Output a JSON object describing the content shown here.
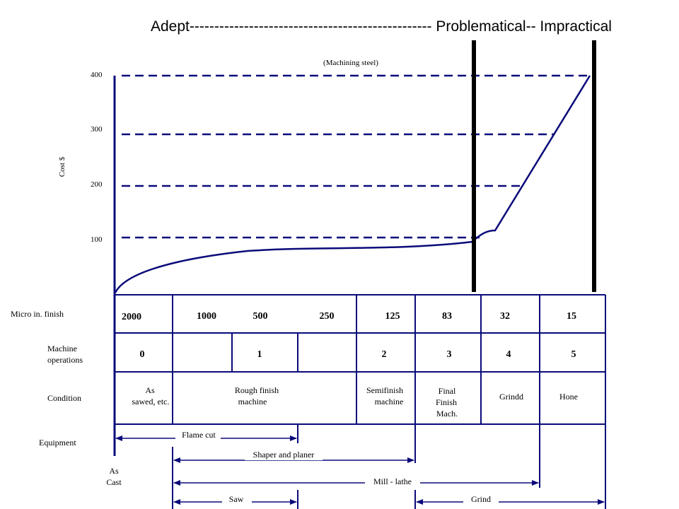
{
  "header": {
    "title_line": "Adept------------------------------------------------- Problematical-- Impractical"
  },
  "chart": {
    "subtitle": "(Machining steel)",
    "ylabel": "Cost $",
    "y_ticks": [
      "400",
      "300",
      "200",
      "100"
    ],
    "line_color": "#0a0a7a"
  },
  "chart_data": {
    "type": "line",
    "title": "(Machining steel)",
    "xlabel": "",
    "ylabel": "Cost $",
    "y_ticks": [
      100,
      200,
      300,
      400
    ],
    "ylim": [
      0,
      400
    ],
    "x_categories": [
      "2000",
      "1000",
      "500",
      "250",
      "125",
      "83",
      "32",
      "15"
    ],
    "reference_levels": [
      100,
      200,
      300,
      400
    ],
    "zone_labels": [
      "Adept",
      "Problematical",
      "Impractical"
    ],
    "series": [
      {
        "x": [
          "2000",
          "1000",
          "500",
          "250",
          "125",
          "83",
          "32",
          "15"
        ],
        "y": [
          0,
          72,
          80,
          82,
          88,
          98,
          118,
          395
        ]
      }
    ]
  },
  "table": {
    "row_labels": {
      "finish": "Micro in. finish",
      "operations": [
        "Machine",
        "operations"
      ],
      "condition": "Condition",
      "equipment": "Equipment",
      "as_cast": [
        "As",
        "Cast"
      ]
    },
    "finish_values": [
      "2000",
      "1000",
      "500",
      "250",
      "125",
      "83",
      "32",
      "15"
    ],
    "operation_values": [
      "0",
      "1",
      "2",
      "3",
      "4",
      "5"
    ],
    "conditions": {
      "as_sawed": [
        "As",
        "sawed, etc."
      ],
      "rough": [
        "Rough finish",
        "machine"
      ],
      "semifinish": [
        "Semifinish",
        "machine"
      ],
      "final": [
        "Final",
        "Finish",
        "Mach."
      ],
      "grind": "Grindd",
      "hone": "Hone"
    },
    "equipment": {
      "flame_cut": "Flame cut",
      "shaper": "Shaper and planer",
      "mill": "Mill - lathe",
      "saw": "Saw",
      "grind": "Grind"
    }
  }
}
